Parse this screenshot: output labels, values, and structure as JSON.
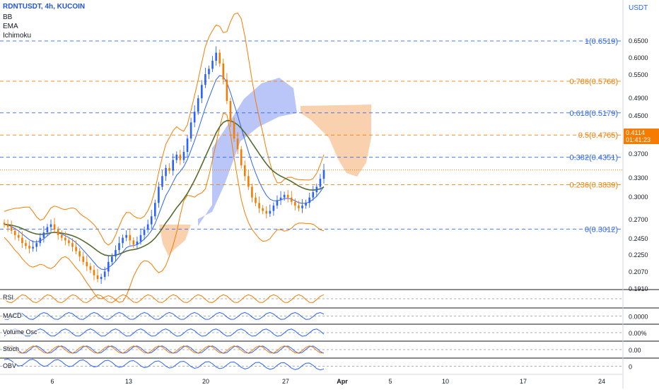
{
  "header": {
    "symbol": "RDNTUSDT, 4h, KUCOIN",
    "indicators": [
      "BB",
      "EMA",
      "Ichimoku"
    ],
    "currency": "USDT"
  },
  "colors": {
    "fib_blue": "#2962ff",
    "fib_orange": "#f57c00",
    "candle_up": "#2962ff",
    "candle_down": "#f57c00",
    "bb": "#f57c00",
    "ema_fast": "#2962ff",
    "ema_slow": "#556b2f",
    "cloud_bull": "#a8b8f5",
    "cloud_bear": "#f9c9a0"
  },
  "price_tag": {
    "price": "0.4114",
    "countdown": "01:41:23"
  },
  "panes": [
    {
      "label": "RSI",
      "value": ""
    },
    {
      "label": "MACD",
      "value": "0.0000"
    },
    {
      "label": "Volume Osc",
      "value": "0.00%"
    },
    {
      "label": "Stoch",
      "value": "0.00"
    },
    {
      "label": "OBV",
      "value": "0"
    }
  ],
  "chart_data": {
    "type": "candlestick",
    "title": "RDNTUSDT, 4h, KUCOIN",
    "y_axis_ticks": [
      "0.6500",
      "0.6000",
      "0.5500",
      "0.4900",
      "0.4500",
      "0.3700",
      "0.3300",
      "0.3000",
      "0.2700",
      "0.2450",
      "0.2250",
      "0.2070",
      "0.1910"
    ],
    "x_axis_ticks": [
      "6",
      "13",
      "20",
      "27",
      "Apr",
      "5",
      "10",
      "17",
      "24"
    ],
    "ylim": [
      0.191,
      0.6519
    ],
    "fib_levels": [
      {
        "label": "1(0.6519)",
        "price": 0.6519,
        "color": "blue"
      },
      {
        "label": "0.786(0.5768)",
        "price": 0.5768,
        "color": "orange"
      },
      {
        "label": "0.618(0.5179)",
        "price": 0.5179,
        "color": "blue"
      },
      {
        "label": "0.5(0.4765)",
        "price": 0.4765,
        "color": "orange"
      },
      {
        "label": "0.382(0.4351)",
        "price": 0.4351,
        "color": "blue"
      },
      {
        "label": "0.236(0.3839)",
        "price": 0.3839,
        "color": "orange"
      },
      {
        "label": "0(0.3012)",
        "price": 0.3012,
        "color": "blue"
      }
    ],
    "closes": [
      0.31,
      0.305,
      0.298,
      0.29,
      0.285,
      0.275,
      0.27,
      0.265,
      0.268,
      0.275,
      0.285,
      0.295,
      0.305,
      0.31,
      0.3,
      0.29,
      0.285,
      0.28,
      0.275,
      0.268,
      0.26,
      0.25,
      0.24,
      0.232,
      0.225,
      0.215,
      0.208,
      0.212,
      0.222,
      0.24,
      0.25,
      0.262,
      0.275,
      0.285,
      0.29,
      0.28,
      0.272,
      0.278,
      0.29,
      0.3,
      0.31,
      0.325,
      0.35,
      0.38,
      0.4,
      0.415,
      0.41,
      0.43,
      0.44,
      0.43,
      0.445,
      0.47,
      0.5,
      0.52,
      0.545,
      0.57,
      0.59,
      0.6,
      0.615,
      0.63,
      0.61,
      0.58,
      0.54,
      0.5,
      0.47,
      0.45,
      0.42,
      0.4,
      0.38,
      0.36,
      0.35,
      0.34,
      0.335,
      0.33,
      0.335,
      0.345,
      0.355,
      0.36,
      0.365,
      0.36,
      0.352,
      0.345,
      0.34,
      0.345,
      0.35,
      0.36,
      0.37,
      0.38,
      0.395,
      0.411
    ],
    "current_price": 0.4114
  }
}
